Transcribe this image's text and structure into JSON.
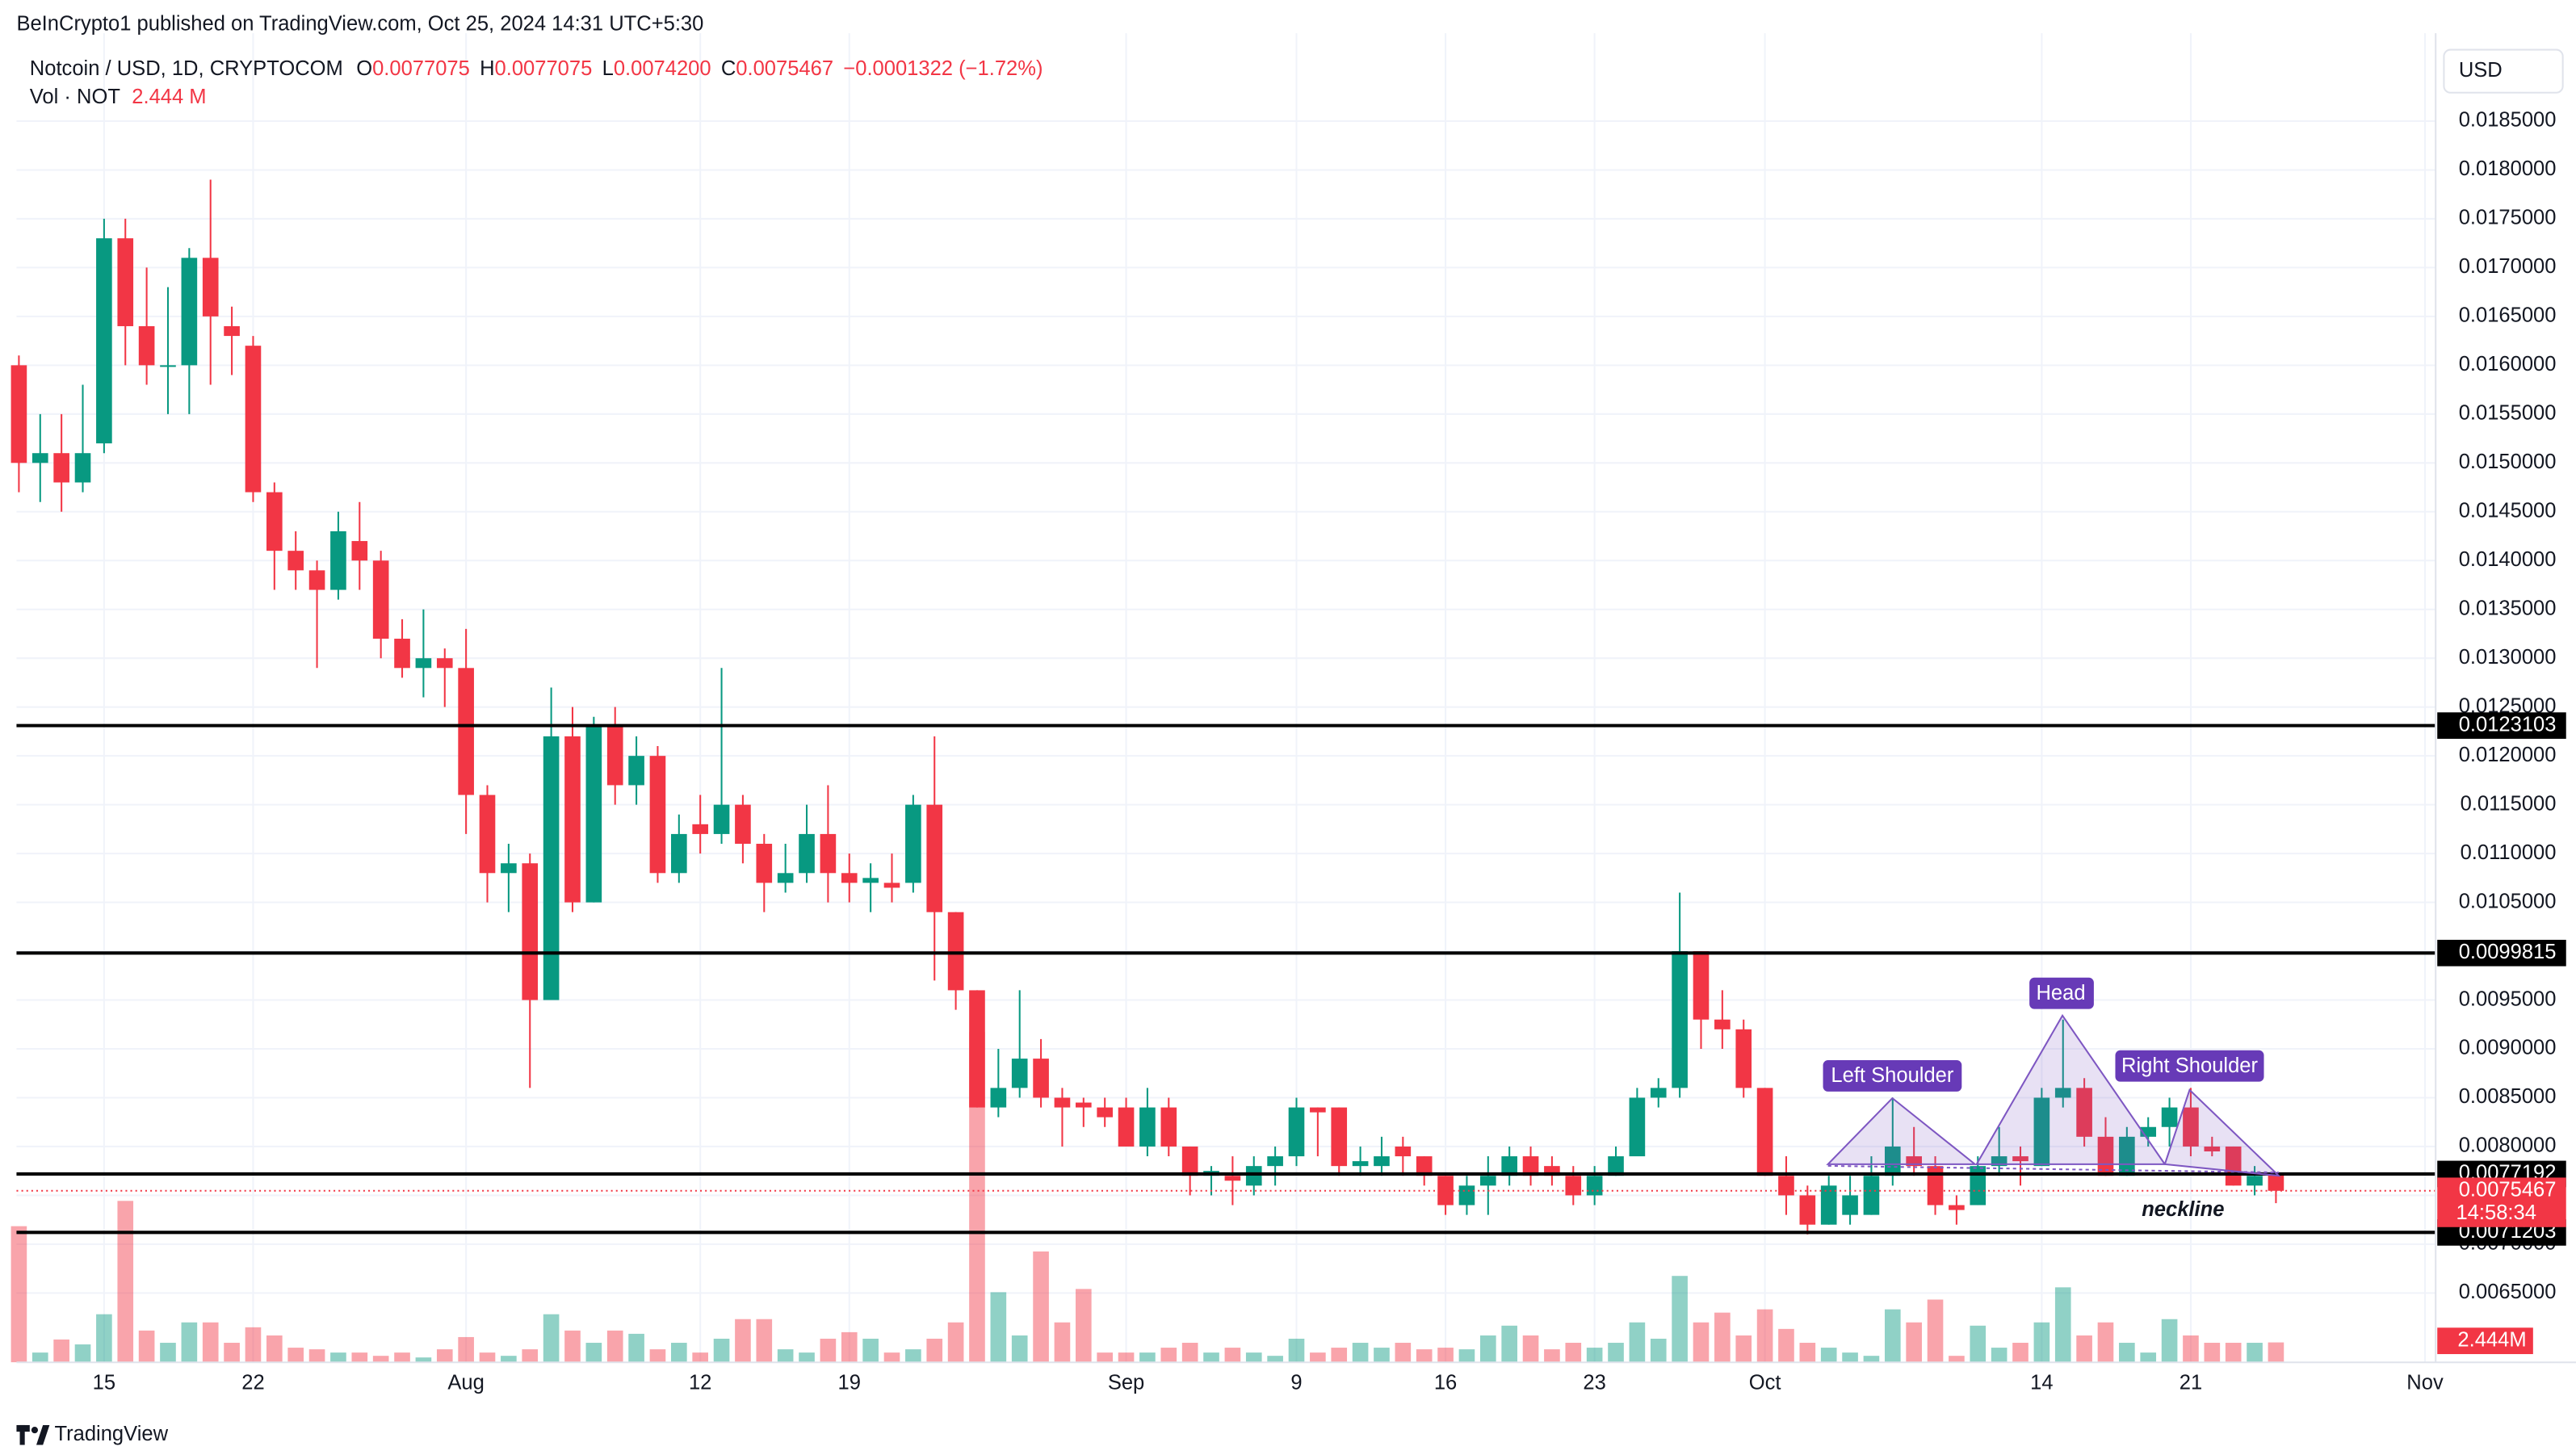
{
  "chart_data": {
    "type": "candlestick",
    "attribution": "BeInCrypto1 published on TradingView.com, Oct 25, 2024 14:31 UTC+5:30",
    "symbol": "Notcoin / USD, 1D, CRYPTOCOM",
    "ohlc": [
      {
        "key": "O",
        "text": "0.0077075"
      },
      {
        "key": "H",
        "text": "0.0077075"
      },
      {
        "key": "L",
        "text": "0.0074200"
      },
      {
        "key": "C",
        "text": "0.0075467"
      }
    ],
    "change": "−0.0001322 (−1.72%)",
    "volume_label": "Vol · NOT",
    "volume_value": "2.444 M",
    "volume_axis_label": "2.444M",
    "currency": "USD",
    "brand": "TradingView",
    "up_color": "#089981",
    "down_color": "#f23645",
    "grid": true,
    "annotations": [
      "Left Shoulder",
      "Head",
      "Right Shoulder",
      "neckline"
    ],
    "levels": [
      0.0123103,
      0.0099815,
      0.0077192,
      0.0071203
    ],
    "last_price": 0.0075467,
    "countdown": "14:58:34",
    "ylim": [
      0.00579,
      0.0194
    ],
    "yticks": [
      {
        "value": 0.0065,
        "label": "0.0065000"
      },
      {
        "value": 0.007,
        "label": "0.0070000"
      },
      {
        "value": 0.0075,
        "label": "0.0075000"
      },
      {
        "value": 0.008,
        "label": "0.0080000"
      },
      {
        "value": 0.0085,
        "label": "0.0085000"
      },
      {
        "value": 0.009,
        "label": "0.0090000"
      },
      {
        "value": 0.0095,
        "label": "0.0095000"
      },
      {
        "value": 0.01,
        "label": "0.0100000"
      },
      {
        "value": 0.0105,
        "label": "0.0105000"
      },
      {
        "value": 0.011,
        "label": "0.0110000"
      },
      {
        "value": 0.0115,
        "label": "0.0115000"
      },
      {
        "value": 0.012,
        "label": "0.0120000"
      },
      {
        "value": 0.0125,
        "label": "0.0125000"
      },
      {
        "value": 0.013,
        "label": "0.0130000"
      },
      {
        "value": 0.0135,
        "label": "0.0135000"
      },
      {
        "value": 0.014,
        "label": "0.0140000"
      },
      {
        "value": 0.0145,
        "label": "0.0145000"
      },
      {
        "value": 0.015,
        "label": "0.0150000"
      },
      {
        "value": 0.0155,
        "label": "0.0155000"
      },
      {
        "value": 0.016,
        "label": "0.0160000"
      },
      {
        "value": 0.0165,
        "label": "0.0165000"
      },
      {
        "value": 0.017,
        "label": "0.0170000"
      },
      {
        "value": 0.0175,
        "label": "0.0175000"
      },
      {
        "value": 0.018,
        "label": "0.0180000"
      },
      {
        "value": 0.0185,
        "label": "0.0185000"
      }
    ],
    "categories": [
      null,
      null,
      null,
      null,
      "15",
      null,
      null,
      null,
      null,
      null,
      null,
      "22",
      null,
      null,
      null,
      null,
      null,
      null,
      null,
      null,
      null,
      "Aug",
      null,
      null,
      null,
      null,
      null,
      null,
      null,
      null,
      null,
      null,
      "12",
      null,
      null,
      null,
      null,
      null,
      null,
      "19",
      null,
      null,
      null,
      null,
      null,
      null,
      null,
      null,
      null,
      null,
      null,
      null,
      "Sep",
      null,
      null,
      null,
      null,
      null,
      null,
      null,
      "9",
      null,
      null,
      null,
      null,
      null,
      null,
      "16",
      null,
      null,
      null,
      null,
      null,
      null,
      "23",
      null,
      null,
      null,
      null,
      null,
      null,
      null,
      "Oct",
      null,
      null,
      null,
      null,
      null,
      null,
      null,
      null,
      null,
      null,
      null,
      null,
      "14",
      null,
      null,
      null,
      null,
      null,
      null,
      "21",
      null,
      null,
      null,
      null,
      null,
      null,
      null,
      null,
      null,
      null,
      "Nov"
    ],
    "open": [
      0.016,
      0.015,
      0.0151,
      0.0148,
      0.0152,
      0.0173,
      0.0164,
      0.016,
      0.016,
      0.0171,
      0.0164,
      0.0162,
      0.0147,
      0.0141,
      0.0139,
      0.0137,
      0.0142,
      0.014,
      0.0132,
      0.0129,
      0.013,
      0.0129,
      0.0116,
      0.0108,
      0.0109,
      0.0095,
      0.0122,
      0.0105,
      0.0123,
      0.0117,
      0.012,
      0.0108,
      0.0113,
      0.0112,
      0.0115,
      0.0111,
      0.0107,
      0.0108,
      0.0112,
      0.0108,
      0.0107,
      0.0107,
      0.0107,
      0.0115,
      0.0104,
      0.0096,
      0.0084,
      0.0086,
      0.0089,
      0.0085,
      0.00845,
      0.0084,
      0.0084,
      0.008,
      0.0084,
      0.008,
      0.0077,
      0.0077,
      0.0076,
      0.0078,
      0.0079,
      0.0084,
      0.0084,
      0.0078,
      0.0078,
      0.008,
      0.0079,
      0.0077,
      0.0074,
      0.0076,
      0.0077,
      0.0079,
      0.0078,
      0.0077,
      0.0075,
      0.0077,
      0.0079,
      0.0085,
      0.0086,
      0.01,
      0.0093,
      0.0092,
      0.0086,
      0.0077,
      0.0075,
      0.0072,
      0.0073,
      0.0073,
      0.0077,
      0.0079,
      0.0078,
      0.0074,
      0.0074,
      0.0078,
      0.0079,
      0.0078,
      0.0085,
      0.0086,
      0.0081,
      0.0077,
      0.0081,
      0.0082,
      0.0084,
      0.008,
      0.008,
      0.0076,
      0.0077075,
      null,
      null,
      null,
      null,
      null,
      null,
      null
    ],
    "high": [
      0.0161,
      0.0155,
      0.0155,
      0.0158,
      0.0175,
      0.0175,
      0.017,
      0.0168,
      0.0172,
      0.0179,
      0.0166,
      0.0163,
      0.0148,
      0.0143,
      0.014,
      0.0145,
      0.0146,
      0.0141,
      0.0134,
      0.0135,
      0.0131,
      0.0133,
      0.0117,
      0.0111,
      0.011,
      0.0127,
      0.0125,
      0.0124,
      0.0125,
      0.0122,
      0.0121,
      0.0114,
      0.0116,
      0.0129,
      0.0116,
      0.0112,
      0.0111,
      0.0115,
      0.0117,
      0.011,
      0.0109,
      0.011,
      0.0116,
      0.0122,
      0.0104,
      0.0096,
      0.009,
      0.0096,
      0.0091,
      0.0086,
      0.0085,
      0.0085,
      0.0085,
      0.0086,
      0.0085,
      0.008,
      0.0078,
      0.0079,
      0.0079,
      0.008,
      0.0085,
      0.0084,
      0.0084,
      0.008,
      0.0081,
      0.0081,
      0.0079,
      0.0077,
      0.0077,
      0.0079,
      0.008,
      0.008,
      0.0079,
      0.0078,
      0.0078,
      0.008,
      0.0086,
      0.0087,
      0.0106,
      0.01,
      0.0096,
      0.0093,
      0.0086,
      0.0079,
      0.0076,
      0.0077,
      0.0077,
      0.0079,
      0.0085,
      0.0082,
      0.0079,
      0.0075,
      0.0079,
      0.0082,
      0.008,
      0.0086,
      0.0093,
      0.0087,
      0.0083,
      0.0082,
      0.0083,
      0.0085,
      0.0086,
      0.0081,
      0.008,
      0.0078,
      0.0077075,
      null,
      null,
      null,
      null,
      null,
      null,
      null
    ],
    "low": [
      0.0147,
      0.0146,
      0.0145,
      0.0147,
      0.0151,
      0.016,
      0.0158,
      0.0155,
      0.0155,
      0.0158,
      0.0159,
      0.0146,
      0.0137,
      0.0137,
      0.0129,
      0.0136,
      0.0137,
      0.013,
      0.0128,
      0.0126,
      0.0125,
      0.0112,
      0.0105,
      0.0104,
      0.0086,
      0.0095,
      0.0104,
      0.0105,
      0.0115,
      0.0115,
      0.0107,
      0.0107,
      0.011,
      0.0111,
      0.0109,
      0.0104,
      0.0106,
      0.0107,
      0.0105,
      0.0105,
      0.0104,
      0.0105,
      0.0106,
      0.0097,
      0.0094,
      0.0084,
      0.0083,
      0.0085,
      0.0084,
      0.008,
      0.0082,
      0.0082,
      0.008,
      0.0079,
      0.0079,
      0.0075,
      0.0075,
      0.0074,
      0.0075,
      0.0076,
      0.0078,
      0.0079,
      0.0077,
      0.0077,
      0.0077,
      0.0077,
      0.0076,
      0.0073,
      0.0073,
      0.0073,
      0.0076,
      0.0076,
      0.0076,
      0.0074,
      0.0074,
      0.0077,
      0.0079,
      0.0084,
      0.0085,
      0.009,
      0.009,
      0.0085,
      0.0077,
      0.0073,
      0.0071,
      0.0072,
      0.0072,
      0.0073,
      0.0076,
      0.0077,
      0.0073,
      0.0072,
      0.0074,
      0.0077,
      0.0076,
      0.0078,
      0.0084,
      0.008,
      0.0077,
      0.0077,
      0.008,
      0.008,
      0.0079,
      0.0079,
      0.0076,
      0.0075,
      0.00742,
      null,
      null,
      null,
      null,
      null,
      null,
      null
    ],
    "close": [
      0.015,
      0.0151,
      0.0148,
      0.0151,
      0.0173,
      0.0164,
      0.016,
      0.016,
      0.0171,
      0.0165,
      0.0163,
      0.0147,
      0.0141,
      0.0139,
      0.0137,
      0.0143,
      0.014,
      0.0132,
      0.0129,
      0.013,
      0.0129,
      0.0116,
      0.0108,
      0.0109,
      0.0095,
      0.0122,
      0.0105,
      0.0123,
      0.0117,
      0.012,
      0.0108,
      0.0112,
      0.0112,
      0.0115,
      0.0111,
      0.0107,
      0.0108,
      0.0112,
      0.0108,
      0.0107,
      0.01075,
      0.01065,
      0.0115,
      0.0104,
      0.0096,
      0.0084,
      0.0086,
      0.0089,
      0.0085,
      0.0084,
      0.0084,
      0.0083,
      0.008,
      0.0084,
      0.008,
      0.0077,
      0.00775,
      0.00765,
      0.0078,
      0.0079,
      0.0084,
      0.00835,
      0.0078,
      0.00785,
      0.0079,
      0.0079,
      0.0077,
      0.0074,
      0.0076,
      0.0077,
      0.0079,
      0.0077,
      0.0077,
      0.0075,
      0.0077,
      0.0079,
      0.0085,
      0.0086,
      0.01,
      0.0093,
      0.0092,
      0.0086,
      0.0077,
      0.0075,
      0.0072,
      0.0076,
      0.0075,
      0.0077,
      0.008,
      0.0078,
      0.0074,
      0.00735,
      0.0078,
      0.0079,
      0.00785,
      0.0085,
      0.0086,
      0.0081,
      0.0077,
      0.0081,
      0.0082,
      0.0084,
      0.008,
      0.00795,
      0.0076,
      0.0077,
      0.0075467,
      null,
      null,
      null,
      null,
      null,
      null,
      null
    ],
    "volume": [
      16.7,
      1.2,
      2.8,
      2.2,
      5.9,
      19.8,
      3.9,
      2.4,
      4.9,
      4.9,
      2.4,
      4.3,
      3.3,
      1.8,
      1.6,
      1.2,
      1.2,
      0.8,
      1.2,
      0.6,
      1.6,
      3.1,
      1.2,
      0.8,
      1.6,
      5.9,
      3.9,
      2.4,
      3.9,
      3.5,
      1.6,
      2.4,
      1.2,
      2.9,
      5.3,
      5.3,
      1.6,
      1.2,
      2.9,
      3.7,
      2.9,
      1.2,
      1.6,
      2.9,
      4.9,
      40.5,
      8.6,
      3.3,
      13.6,
      4.9,
      9,
      1.2,
      1.2,
      1.2,
      1.8,
      2.4,
      1.2,
      1.8,
      1.2,
      0.8,
      2.9,
      1.2,
      1.8,
      2.4,
      1.8,
      2.4,
      1.6,
      1.8,
      1.6,
      3.3,
      4.5,
      3.3,
      1.6,
      2.4,
      1.8,
      2.4,
      4.9,
      2.9,
      10.6,
      4.9,
      6.1,
      3.3,
      6.5,
      4.1,
      2.4,
      1.8,
      1.2,
      0.8,
      6.5,
      4.9,
      7.7,
      0.8,
      4.5,
      1.8,
      2.4,
      4.9,
      9.2,
      3.3,
      4.9,
      2.4,
      1.2,
      5.3,
      3.3,
      2.4,
      2.4,
      2.4,
      2.444,
      null,
      null,
      null,
      null,
      null,
      null,
      null
    ]
  }
}
